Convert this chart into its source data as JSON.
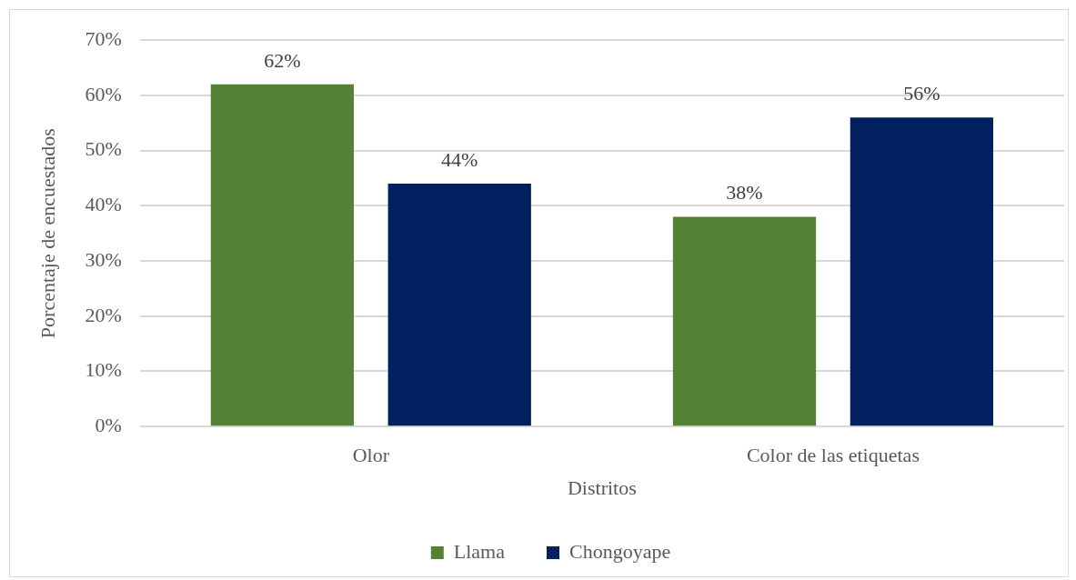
{
  "chart_data": {
    "type": "bar",
    "xlabel": "Distritos",
    "ylabel": "Porcentaje de encuestados",
    "categories": [
      "Olor",
      "Color de las etiquetas"
    ],
    "series": [
      {
        "name": "Llama",
        "color": "#548235",
        "values": [
          62,
          38
        ],
        "value_labels": [
          "62%",
          "38%"
        ]
      },
      {
        "name": "Chongoyape",
        "color": "#002060",
        "values": [
          44,
          56
        ],
        "value_labels": [
          "44%",
          "56%"
        ]
      }
    ],
    "ylim": [
      0,
      70
    ],
    "yticks": [
      {
        "value": 0,
        "label": "0%"
      },
      {
        "value": 10,
        "label": "10%"
      },
      {
        "value": 20,
        "label": "20%"
      },
      {
        "value": 30,
        "label": "30%"
      },
      {
        "value": 40,
        "label": "40%"
      },
      {
        "value": 50,
        "label": "50%"
      },
      {
        "value": 60,
        "label": "60%"
      },
      {
        "value": 70,
        "label": "70%"
      }
    ],
    "grid": "y",
    "legend": "bottom"
  }
}
